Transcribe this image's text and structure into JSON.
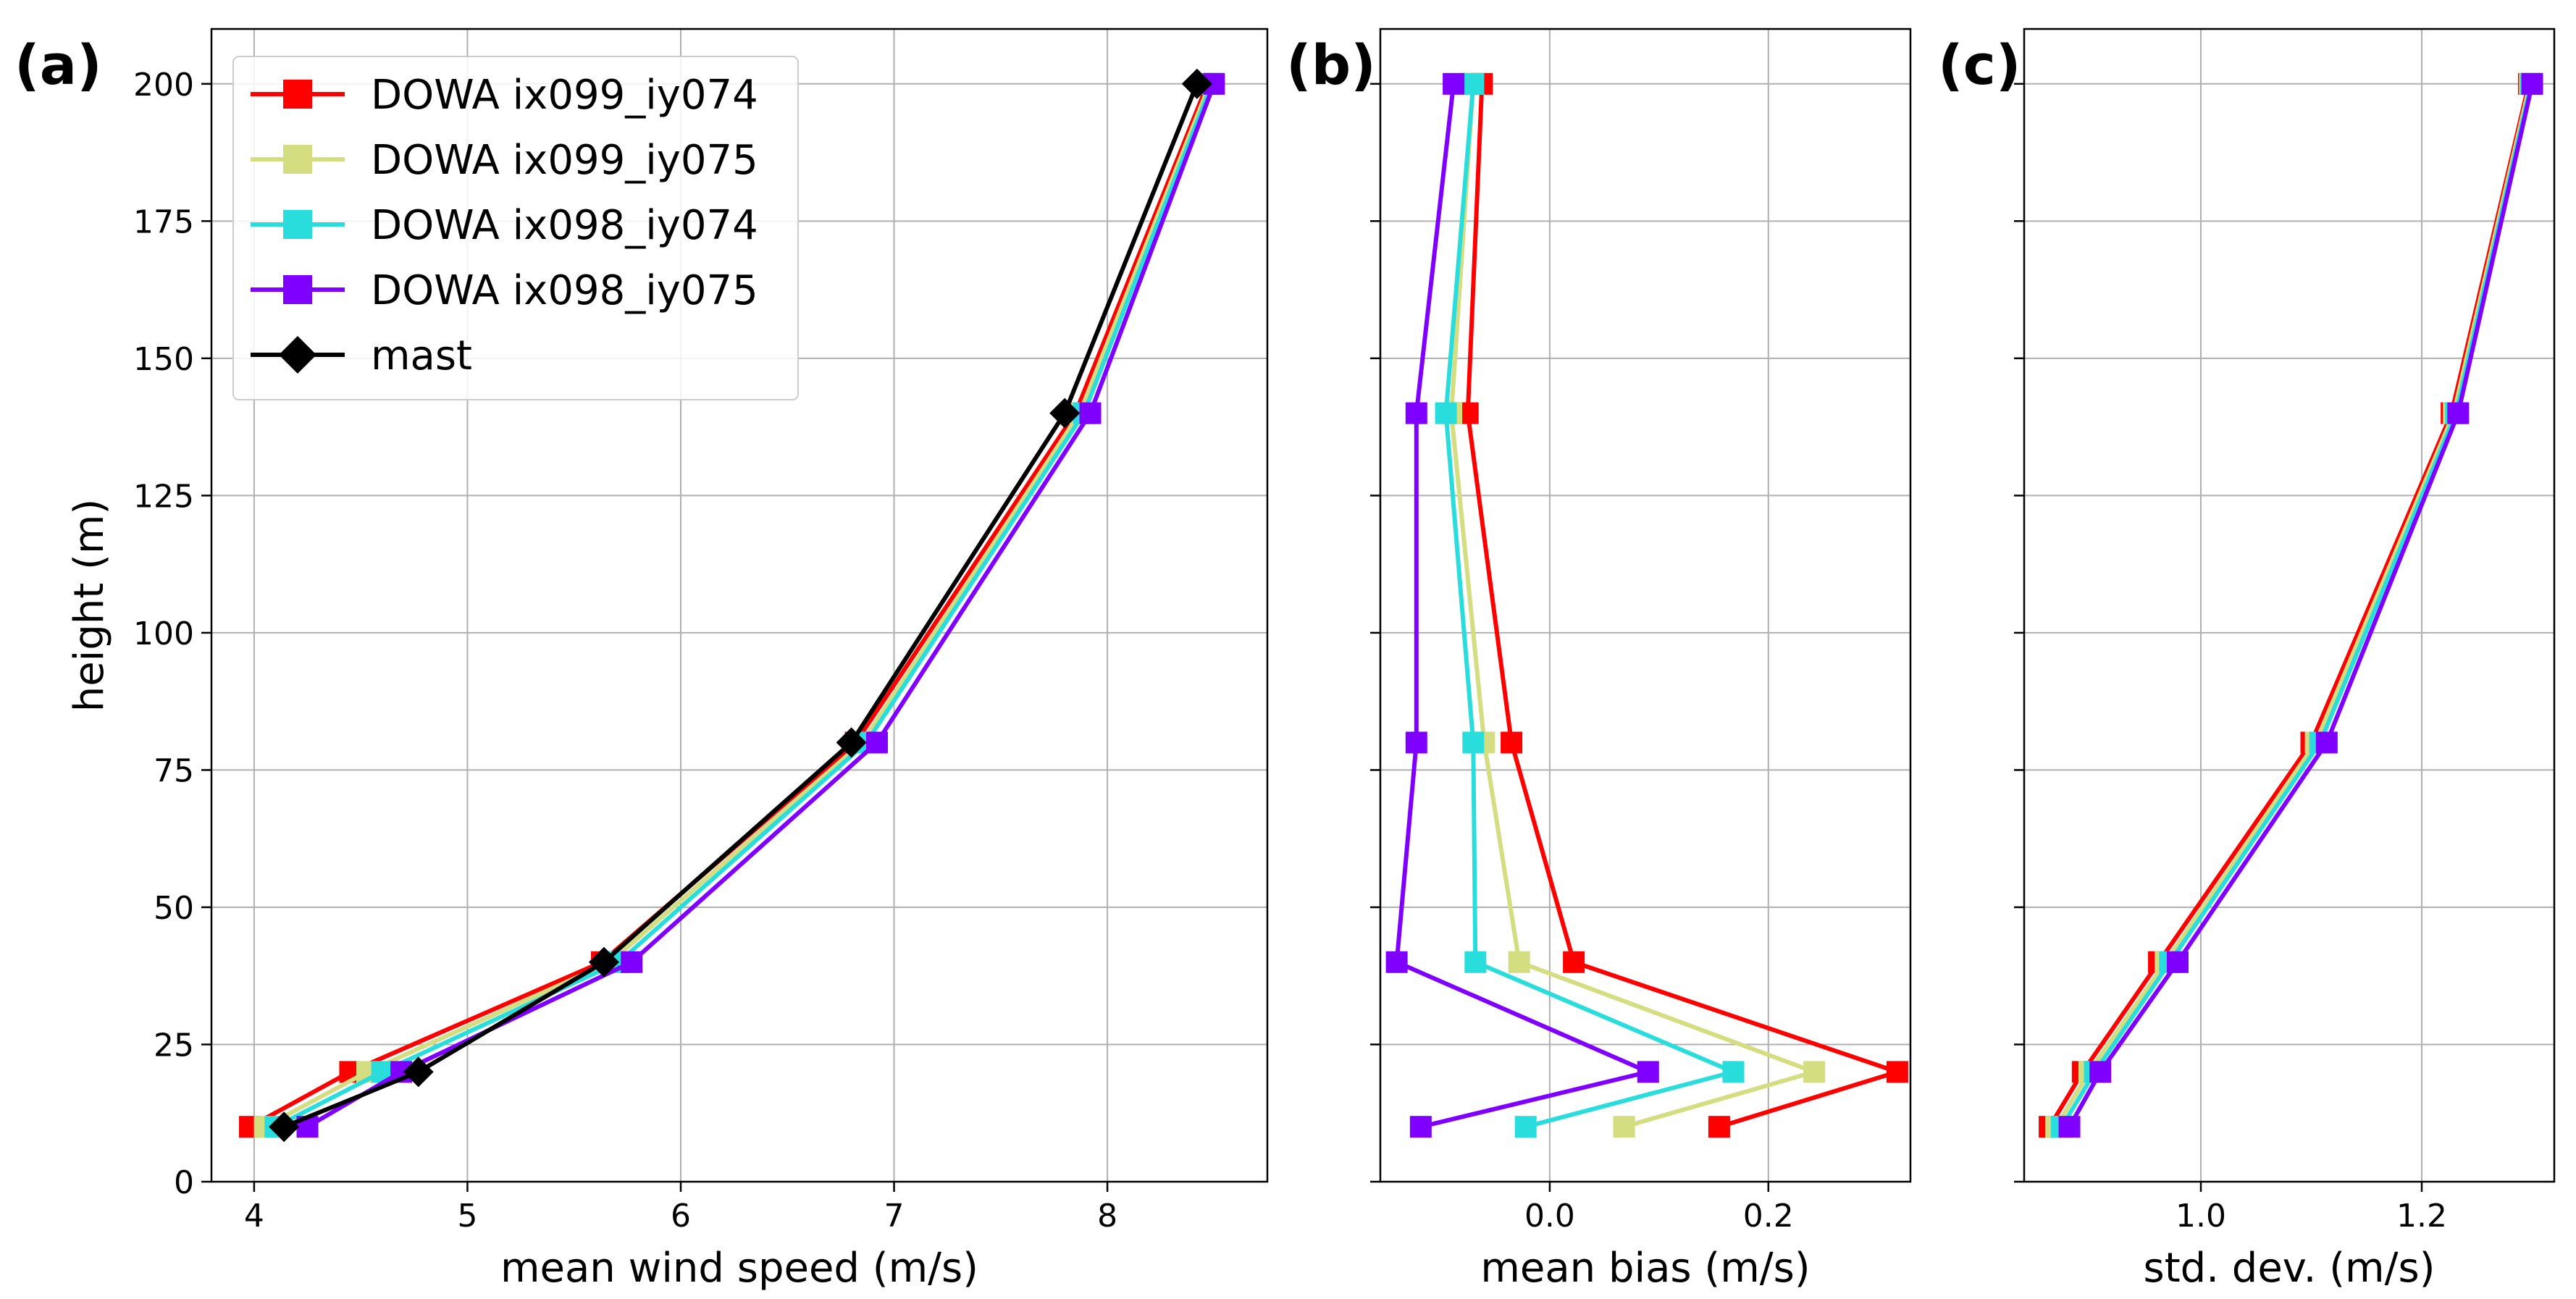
{
  "chart_data": [
    {
      "type": "line",
      "panel_label": "(a)",
      "xlabel": "mean wind speed (m/s)",
      "ylabel": "height (m)",
      "xlim": [
        3.8,
        8.75
      ],
      "ylim": [
        0,
        210
      ],
      "xticks": [
        4,
        5,
        6,
        7,
        8
      ],
      "xtick_labels": [
        "4",
        "5",
        "6",
        "7",
        "8"
      ],
      "yticks": [
        0,
        25,
        50,
        75,
        100,
        125,
        150,
        175,
        200
      ],
      "ytick_labels": [
        "0",
        "25",
        "50",
        "75",
        "100",
        "125",
        "150",
        "175",
        "200"
      ],
      "grid": true,
      "legend_position": "upper-left",
      "series": [
        {
          "name": "DOWA ix099_iy074",
          "color": "#ff0000",
          "marker": "square",
          "heights": [
            10,
            20,
            40,
            80,
            140,
            200
          ],
          "values": [
            3.98,
            4.45,
            5.63,
            6.82,
            7.85,
            8.47
          ]
        },
        {
          "name": "DOWA ix099_iy075",
          "color": "#d4dd80",
          "marker": "square",
          "heights": [
            10,
            20,
            40,
            80,
            140,
            200
          ],
          "values": [
            4.05,
            4.53,
            5.67,
            6.85,
            7.87,
            8.48
          ]
        },
        {
          "name": "DOWA ix098_iy074",
          "color": "#2adddd",
          "marker": "square",
          "heights": [
            10,
            20,
            40,
            80,
            140,
            200
          ],
          "values": [
            4.1,
            4.6,
            5.71,
            6.87,
            7.89,
            8.49
          ]
        },
        {
          "name": "DOWA ix098_iy075",
          "color": "#8000ff",
          "marker": "square",
          "heights": [
            10,
            20,
            40,
            80,
            140,
            200
          ],
          "values": [
            4.25,
            4.69,
            5.77,
            6.92,
            7.92,
            8.5
          ]
        },
        {
          "name": "mast",
          "color": "#000000",
          "marker": "diamond",
          "heights": [
            10,
            20,
            40,
            80,
            140,
            200
          ],
          "values": [
            4.14,
            4.77,
            5.64,
            6.8,
            7.8,
            8.42
          ]
        }
      ]
    },
    {
      "type": "line",
      "panel_label": "(b)",
      "xlabel": "mean bias (m/s)",
      "xlim": [
        -0.155,
        0.33
      ],
      "ylim": [
        0,
        210
      ],
      "xticks": [
        0.0,
        0.2
      ],
      "xtick_labels": [
        "0.0",
        "0.2"
      ],
      "grid": true,
      "series": [
        {
          "name": "DOWA ix099_iy074",
          "color": "#ff0000",
          "heights": [
            10,
            20,
            40,
            80,
            140,
            200
          ],
          "values": [
            0.155,
            0.318,
            0.022,
            -0.035,
            -0.075,
            -0.062
          ]
        },
        {
          "name": "DOWA ix099_iy075",
          "color": "#d4dd80",
          "heights": [
            10,
            20,
            40,
            80,
            140,
            200
          ],
          "values": [
            0.068,
            0.242,
            -0.028,
            -0.06,
            -0.09,
            -0.07
          ]
        },
        {
          "name": "DOWA ix098_iy074",
          "color": "#2adddd",
          "heights": [
            10,
            20,
            40,
            80,
            140,
            200
          ],
          "values": [
            -0.022,
            0.168,
            -0.068,
            -0.07,
            -0.095,
            -0.07
          ]
        },
        {
          "name": "DOWA ix098_iy075",
          "color": "#8000ff",
          "heights": [
            10,
            20,
            40,
            80,
            140,
            200
          ],
          "values": [
            -0.118,
            0.09,
            -0.14,
            -0.122,
            -0.122,
            -0.088
          ]
        }
      ]
    },
    {
      "type": "line",
      "panel_label": "(c)",
      "xlabel": "std. dev. (m/s)",
      "xlim": [
        0.84,
        1.32
      ],
      "ylim": [
        0,
        210
      ],
      "xticks": [
        1.0,
        1.2
      ],
      "xtick_labels": [
        "1.0",
        "1.2"
      ],
      "grid": true,
      "series": [
        {
          "name": "DOWA ix099_iy074",
          "color": "#ff0000",
          "heights": [
            10,
            20,
            40,
            80,
            140,
            200
          ],
          "values": [
            0.863,
            0.893,
            0.962,
            1.1,
            1.227,
            1.297
          ]
        },
        {
          "name": "DOWA ix099_iy075",
          "color": "#d4dd80",
          "heights": [
            10,
            20,
            40,
            80,
            140,
            200
          ],
          "values": [
            0.869,
            0.899,
            0.968,
            1.104,
            1.229,
            1.298
          ]
        },
        {
          "name": "DOWA ix098_iy074",
          "color": "#2adddd",
          "heights": [
            10,
            20,
            40,
            80,
            140,
            200
          ],
          "values": [
            0.874,
            0.904,
            0.972,
            1.108,
            1.231,
            1.299
          ]
        },
        {
          "name": "DOWA ix098_iy075",
          "color": "#8000ff",
          "heights": [
            10,
            20,
            40,
            80,
            140,
            200
          ],
          "values": [
            0.881,
            0.909,
            0.979,
            1.114,
            1.233,
            1.3
          ]
        }
      ]
    }
  ]
}
